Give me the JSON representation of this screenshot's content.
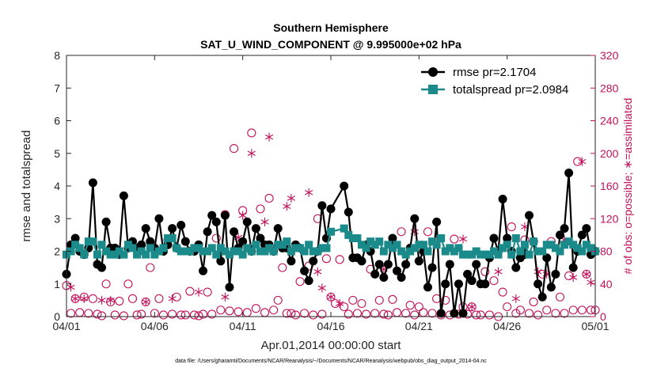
{
  "chart_data": {
    "type": "line",
    "title": "Southern Hemisphere",
    "subtitle": "SAT_U_WIND_COMPONENT @ 9.995000e+02 hPa",
    "xlabel": "Apr.01,2014 00:00:00 start",
    "ylabel": "rmse and totalspread",
    "ylabel_right": "# of obs: o=possible; ∗=assimilated",
    "footer": "data file: /Users/gharamti/Documents/NCAR/Reanalysis/~/Documents/NCAR/Reanalysis/webpub/obs_diag_output_2014-04.nc",
    "xlim": [
      0,
      30
    ],
    "ylim": [
      0,
      8
    ],
    "ylim_right": [
      0,
      320
    ],
    "x_ticks": [
      0,
      5,
      10,
      15,
      20,
      25,
      30
    ],
    "x_tick_labels": [
      "04/01",
      "04/06",
      "04/11",
      "04/16",
      "04/21",
      "04/26",
      "05/01"
    ],
    "y_ticks": [
      "0",
      "1",
      "2",
      "3",
      "4",
      "5",
      "6",
      "7",
      "8"
    ],
    "y_right_ticks": [
      "0",
      "40",
      "80",
      "120",
      "160",
      "200",
      "240",
      "280",
      "320"
    ],
    "colors": {
      "rmse": "#000000",
      "spread": "#1a8a8a",
      "obs": "#c0105a"
    },
    "legend": [
      {
        "label": "rmse pr=2.1704"
      },
      {
        "label": "totalspread pr=2.0984"
      }
    ],
    "legend_position": "top-right",
    "series": [
      {
        "name": "rmse",
        "x": [
          0.0,
          0.25,
          0.5,
          0.75,
          1.0,
          1.25,
          1.5,
          1.75,
          2.0,
          2.25,
          2.5,
          2.75,
          3.0,
          3.25,
          3.5,
          3.75,
          4.0,
          4.25,
          4.5,
          4.75,
          5.0,
          5.25,
          5.5,
          5.75,
          6.0,
          6.25,
          6.5,
          6.75,
          7.0,
          7.25,
          7.5,
          7.75,
          8.0,
          8.25,
          8.5,
          8.75,
          9.0,
          9.25,
          9.5,
          9.75,
          10.0,
          10.25,
          10.5,
          10.75,
          11.0,
          11.25,
          11.5,
          11.75,
          12.0,
          12.25,
          12.5,
          12.75,
          13.0,
          13.25,
          13.5,
          13.75,
          14.0,
          14.25,
          14.5,
          14.75,
          15.0,
          15.75,
          16.0,
          16.25,
          16.5,
          16.75,
          17.0,
          17.25,
          17.5,
          17.75,
          18.0,
          18.25,
          18.5,
          18.75,
          19.0,
          19.25,
          19.5,
          19.75,
          20.0,
          20.25,
          20.5,
          20.75,
          21.0,
          21.25,
          21.5,
          21.75,
          22.0,
          22.25,
          22.5,
          22.75,
          23.0,
          23.25,
          23.5,
          23.75,
          24.0,
          24.25,
          24.5,
          24.75,
          25.0,
          25.25,
          25.5,
          25.75,
          26.0,
          26.25,
          26.5,
          26.75,
          27.0,
          27.25,
          27.5,
          27.75,
          28.0,
          28.25,
          28.5,
          28.75,
          29.0,
          29.25,
          29.5,
          29.75,
          30.0
        ],
        "values": [
          1.3,
          2.2,
          2.4,
          2.0,
          1.9,
          2.1,
          4.1,
          1.6,
          1.5,
          2.9,
          2.1,
          2.1,
          1.9,
          3.7,
          2.1,
          2.3,
          2.1,
          2.2,
          2.7,
          2.3,
          2.1,
          3.0,
          2.0,
          2.2,
          2.7,
          2.1,
          2.8,
          2.3,
          2.0,
          2.0,
          2.2,
          1.4,
          2.6,
          3.1,
          2.9,
          1.7,
          3.1,
          0.9,
          2.6,
          2.1,
          2.3,
          2.9,
          2.0,
          2.7,
          2.4,
          2.2,
          2.2,
          2.0,
          2.7,
          2.1,
          2.1,
          1.7,
          2.2,
          2.1,
          1.4,
          1.1,
          1.7,
          2.0,
          3.4,
          2.4,
          3.3,
          4.0,
          3.2,
          1.8,
          1.8,
          1.7,
          2.2,
          2.0,
          1.3,
          1.6,
          1.2,
          1.6,
          2.4,
          1.4,
          1.2,
          1.6,
          2.1,
          3.0,
          1.7,
          2.0,
          0.9,
          1.5,
          2.9,
          0.1,
          1.0,
          1.6,
          0.1,
          1.0,
          0.1,
          1.3,
          1.1,
          1.6,
          1.0,
          1.0,
          1.8,
          2.4,
          2.0,
          3.6,
          2.4,
          2.0,
          1.5,
          1.8,
          1.9,
          3.1,
          2.3,
          1.0,
          0.6,
          1.8,
          0.9,
          1.3,
          2.5,
          2.7,
          4.4,
          1.5,
          2.0,
          2.5,
          2.7,
          1.9,
          2.0
        ]
      },
      {
        "name": "totalspread",
        "x": [
          0.0,
          0.25,
          0.5,
          0.75,
          1.0,
          1.25,
          1.5,
          1.75,
          2.0,
          2.25,
          2.5,
          2.75,
          3.0,
          3.25,
          3.5,
          3.75,
          4.0,
          4.25,
          4.5,
          4.75,
          5.0,
          5.25,
          5.5,
          5.75,
          6.0,
          6.25,
          6.5,
          6.75,
          7.0,
          7.25,
          7.5,
          7.75,
          8.0,
          8.25,
          8.5,
          8.75,
          9.0,
          9.25,
          9.5,
          9.75,
          10.0,
          10.25,
          10.5,
          10.75,
          11.0,
          11.25,
          11.5,
          11.75,
          12.0,
          12.25,
          12.5,
          12.75,
          13.0,
          13.25,
          13.5,
          13.75,
          14.0,
          14.25,
          14.5,
          14.75,
          15.0,
          15.75,
          16.0,
          16.25,
          16.5,
          16.75,
          17.0,
          17.25,
          17.5,
          17.75,
          18.0,
          18.25,
          18.5,
          18.75,
          19.0,
          19.25,
          19.5,
          19.75,
          20.0,
          20.25,
          20.5,
          20.75,
          21.0,
          21.25,
          21.5,
          21.75,
          22.0,
          22.25,
          22.5,
          22.75,
          23.0,
          23.25,
          23.5,
          23.75,
          24.0,
          24.25,
          24.5,
          24.75,
          25.0,
          25.25,
          25.5,
          25.75,
          26.0,
          26.25,
          26.5,
          26.75,
          27.0,
          27.25,
          27.5,
          27.75,
          28.0,
          28.25,
          28.5,
          28.75,
          29.0,
          29.25,
          29.5,
          29.75,
          30.0
        ],
        "values": [
          1.9,
          2.0,
          2.2,
          2.1,
          1.9,
          2.3,
          2.3,
          1.9,
          2.2,
          2.0,
          1.9,
          1.9,
          2.0,
          1.9,
          2.2,
          2.1,
          1.9,
          2.0,
          1.9,
          2.1,
          1.9,
          2.0,
          2.1,
          2.4,
          2.4,
          2.1,
          2.0,
          2.0,
          2.0,
          2.1,
          2.1,
          2.0,
          2.0,
          2.1,
          1.9,
          2.1,
          2.0,
          1.9,
          2.0,
          2.0,
          1.9,
          2.1,
          2.0,
          2.2,
          2.0,
          2.0,
          2.1,
          2.0,
          2.2,
          2.2,
          2.3,
          2.0,
          2.1,
          2.1,
          2.0,
          2.2,
          2.0,
          2.0,
          2.1,
          2.1,
          2.6,
          2.7,
          2.5,
          2.4,
          2.4,
          2.2,
          2.1,
          2.3,
          2.2,
          2.3,
          2.0,
          2.2,
          2.1,
          2.2,
          2.0,
          1.9,
          2.0,
          2.1,
          2.2,
          2.2,
          2.0,
          2.3,
          2.2,
          2.4,
          2.0,
          2.1,
          2.0,
          2.1,
          1.9,
          1.9,
          1.9,
          2.0,
          1.9,
          1.9,
          1.9,
          2.0,
          1.9,
          2.1,
          2.2,
          1.9,
          2.4,
          2.0,
          2.2,
          1.9,
          2.3,
          2.0,
          2.0,
          2.2,
          2.2,
          2.1,
          2.0,
          2.2,
          2.3,
          2.2,
          2.1,
          2.0,
          2.2,
          2.1,
          2.0
        ]
      },
      {
        "name": "possible",
        "x": [
          0.0,
          0.25,
          0.5,
          0.75,
          1.0,
          1.25,
          1.5,
          1.75,
          2.0,
          2.25,
          2.5,
          2.75,
          3.0,
          3.25,
          3.5,
          3.75,
          4.0,
          4.25,
          4.5,
          4.75,
          5.0,
          5.25,
          5.5,
          5.75,
          6.0,
          6.25,
          6.5,
          6.75,
          7.0,
          7.25,
          7.5,
          7.75,
          8.0,
          8.25,
          8.5,
          8.75,
          9.0,
          9.25,
          9.5,
          9.75,
          10.0,
          10.25,
          10.5,
          10.75,
          11.0,
          11.25,
          11.5,
          11.75,
          12.0,
          12.25,
          12.5,
          12.75,
          13.0,
          13.25,
          13.5,
          13.75,
          14.0,
          14.25,
          14.5,
          14.75,
          15.0,
          15.25,
          15.5,
          15.75,
          16.0,
          16.25,
          16.5,
          16.75,
          17.0,
          17.25,
          17.5,
          17.75,
          18.0,
          18.25,
          18.5,
          18.75,
          19.0,
          19.25,
          19.5,
          19.75,
          20.0,
          20.25,
          20.5,
          20.75,
          21.0,
          21.25,
          21.5,
          21.75,
          22.0,
          22.25,
          22.5,
          22.75,
          23.0,
          23.25,
          23.5,
          23.75,
          24.0,
          24.25,
          24.5,
          24.75,
          25.0,
          25.25,
          25.5,
          25.75,
          26.0,
          26.25,
          26.5,
          26.75,
          27.0,
          27.25,
          27.5,
          27.75,
          28.0,
          28.25,
          28.5,
          28.75,
          29.0,
          29.25,
          29.5,
          29.75,
          30.0
        ],
        "values": [
          38,
          4,
          22,
          5,
          24,
          4,
          22,
          3,
          1,
          40,
          18,
          2,
          19,
          1,
          40,
          22,
          2,
          3,
          18,
          60,
          4,
          22,
          2,
          94,
          3,
          24,
          2,
          2,
          31,
          2,
          1,
          3,
          30,
          3,
          96,
          8,
          125,
          7,
          206,
          6,
          130,
          5,
          225,
          10,
          132,
          5,
          145,
          8,
          20,
          60,
          4,
          4,
          2,
          43,
          4,
          62,
          2,
          120,
          3,
          71,
          24,
          16,
          70,
          12,
          3,
          20,
          4,
          16,
          3,
          58,
          4,
          20,
          3,
          2,
          21,
          5,
          104,
          4,
          14,
          2,
          12,
          5,
          104,
          4,
          22,
          2,
          20,
          2,
          95,
          3,
          12,
          3,
          12,
          2,
          2,
          55,
          2,
          44,
          0,
          30,
          12,
          110,
          4,
          8,
          94,
          4,
          18,
          2,
          52,
          8,
          92,
          4,
          24,
          4,
          50,
          8,
          190,
          8,
          52,
          8,
          8
        ]
      },
      {
        "name": "assimilated",
        "x": [
          0.25,
          0.5,
          1.0,
          2.0,
          2.5,
          4.5,
          6.0,
          7.5,
          9.0,
          9.75,
          10.0,
          10.5,
          11.25,
          11.5,
          12.5,
          12.75,
          13.75,
          14.25,
          14.5,
          15.0,
          15.5,
          18.0,
          19.75,
          21.5,
          22.5,
          23.0,
          24.5,
          25.5,
          26.0,
          26.75,
          27.25,
          28.0,
          28.25,
          28.75,
          29.25,
          29.5,
          29.75
        ],
        "values": [
          36,
          22,
          22,
          20,
          20,
          18,
          22,
          30,
          24,
          97,
          124,
          200,
          116,
          220,
          135,
          145,
          152,
          55,
          35,
          24,
          16,
          58,
          104,
          40,
          95,
          12,
          55,
          22,
          110,
          55,
          52,
          100,
          94,
          48,
          190,
          52,
          42
        ]
      }
    ]
  }
}
